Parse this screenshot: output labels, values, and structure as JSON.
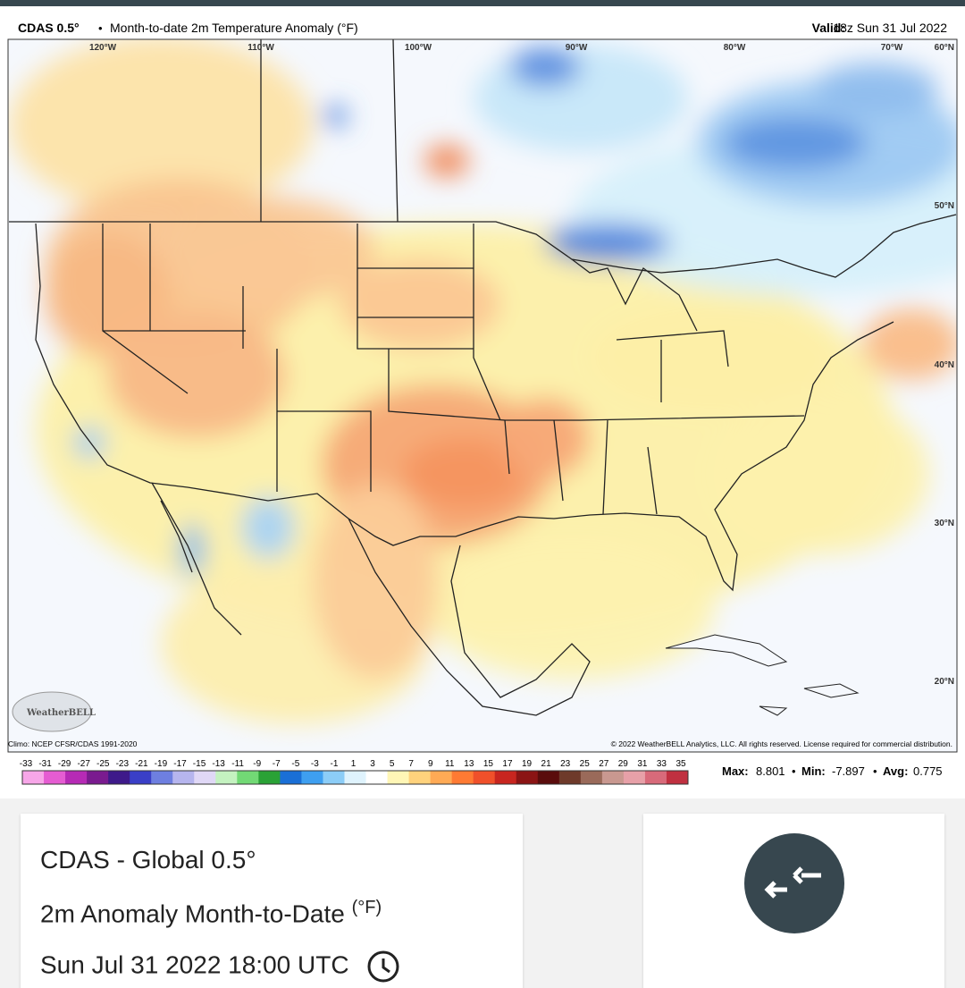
{
  "map": {
    "model": "CDAS 0.5°",
    "separator": "•",
    "title": "Month-to-date 2m Temperature Anomaly (°F)",
    "valid_label": "Valid:",
    "valid_time": "18z Sun 31 Jul 2022",
    "longitude_labels": [
      "120°W",
      "110°W",
      "100°W",
      "90°W",
      "80°W",
      "70°W"
    ],
    "latitude_labels": [
      "60°N",
      "50°N",
      "40°N",
      "30°N",
      "20°N"
    ],
    "logo": "WeatherBELL",
    "climo": "Climo: NCEP CFSR/CDAS 1991-2020",
    "copyright": "© 2022 WeatherBELL Analytics, LLC. All rights reserved. License required for commercial distribution."
  },
  "colorbar": {
    "labels": [
      -33,
      -31,
      -29,
      -27,
      -25,
      -23,
      -21,
      -19,
      -17,
      -15,
      -13,
      -11,
      -9,
      -7,
      -5,
      -3,
      -1,
      1,
      3,
      5,
      7,
      9,
      11,
      13,
      15,
      17,
      19,
      21,
      23,
      25,
      27,
      29,
      31,
      33,
      35
    ]
  },
  "stats": {
    "max_label": "Max:",
    "max": 8.801,
    "min_label": "Min:",
    "min": -7.897,
    "avg_label": "Avg:",
    "avg": 0.775
  },
  "card": {
    "title": "CDAS - Global 0.5°",
    "subtitle": "2m Anomaly Month-to-Date",
    "unit": "(°F)",
    "time": "Sun Jul 31 2022 18:00 UTC"
  }
}
